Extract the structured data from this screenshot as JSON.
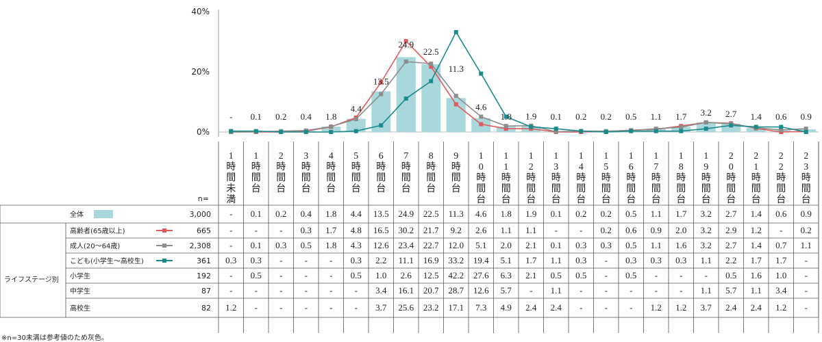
{
  "chart_data": {
    "type": "bar",
    "y_ticks": [
      "40%",
      "20%",
      "0%"
    ],
    "ylim": [
      0,
      40
    ],
    "categories": [
      "1時間未満",
      "1時間台",
      "2時間台",
      "3時間台",
      "4時間台",
      "5時間台",
      "6時間台",
      "7時間台",
      "8時間台",
      "9時間台",
      "10時間台",
      "11時間台",
      "12時間台",
      "13時間台",
      "14時間台",
      "15時間台",
      "16時間台",
      "17時間台",
      "18時間台",
      "19時間台",
      "20時間台",
      "21時間台",
      "22時間台",
      "23時間台"
    ],
    "bar_series": {
      "name": "全体",
      "color": "#a8d8dc",
      "values": [
        0,
        0.1,
        0.2,
        0.4,
        1.8,
        4.4,
        13.5,
        24.9,
        22.5,
        11.3,
        4.6,
        1.8,
        1.9,
        0.1,
        0.2,
        0.2,
        0.5,
        1.1,
        1.7,
        3.2,
        2.7,
        1.4,
        0.6,
        0.9
      ],
      "labels": [
        "-",
        "0.1",
        "0.2",
        "0.4",
        "1.8",
        "4.4",
        "13.5",
        "24.9",
        "22.5",
        "11.3",
        "4.6",
        "1.8",
        "1.9",
        "0.1",
        "0.2",
        "0.2",
        "0.5",
        "1.1",
        "1.7",
        "3.2",
        "2.7",
        "1.4",
        "0.6",
        "0.9"
      ]
    },
    "line_series": [
      {
        "name": "高齢者(65歳以上)",
        "color": "#e05a5a",
        "values": [
          0,
          0,
          0,
          0.3,
          1.7,
          4.8,
          16.5,
          30.2,
          21.7,
          9.2,
          2.6,
          1.1,
          1.1,
          0,
          0,
          0.2,
          0.6,
          0.9,
          2.0,
          3.2,
          2.9,
          1.2,
          0,
          0.2
        ]
      },
      {
        "name": "成人(20〜64歳)",
        "color": "#8c8c8c",
        "values": [
          0,
          0.1,
          0.3,
          0.5,
          1.8,
          4.3,
          12.6,
          23.4,
          22.7,
          12.0,
          5.1,
          2.0,
          2.1,
          0.1,
          0.3,
          0.3,
          0.5,
          1.1,
          1.6,
          3.2,
          2.7,
          1.4,
          0.7,
          1.1
        ]
      },
      {
        "name": "こども(小学生〜高校生)",
        "color": "#1a8a8c",
        "values": [
          0.3,
          0.3,
          0,
          0,
          0,
          0.3,
          2.2,
          11.1,
          16.9,
          33.2,
          19.4,
          5.1,
          1.7,
          1.1,
          0.3,
          0,
          0.3,
          0.3,
          0.3,
          1.1,
          2.2,
          1.7,
          1.7,
          0
        ]
      }
    ]
  },
  "table": {
    "n_label": "n=",
    "group_label": "ライフステージ別",
    "rows": [
      {
        "label": "全体",
        "legend": "bar",
        "color": "#a8d8dc",
        "n": "3,000",
        "cells": [
          "-",
          "0.1",
          "0.2",
          "0.4",
          "1.8",
          "4.4",
          "13.5",
          "24.9",
          "22.5",
          "11.3",
          "4.6",
          "1.8",
          "1.9",
          "0.1",
          "0.2",
          "0.2",
          "0.5",
          "1.1",
          "1.7",
          "3.2",
          "2.7",
          "1.4",
          "0.6",
          "0.9"
        ]
      },
      {
        "label": "高齢者(65歳以上)",
        "legend": "line",
        "color": "#e05a5a",
        "n": "665",
        "cells": [
          "-",
          "-",
          "-",
          "0.3",
          "1.7",
          "4.8",
          "16.5",
          "30.2",
          "21.7",
          "9.2",
          "2.6",
          "1.1",
          "1.1",
          "-",
          "-",
          "0.2",
          "0.6",
          "0.9",
          "2.0",
          "3.2",
          "2.9",
          "1.2",
          "-",
          "0.2"
        ]
      },
      {
        "label": "成人(20〜64歳)",
        "legend": "line",
        "color": "#8c8c8c",
        "n": "2,308",
        "cells": [
          "-",
          "0.1",
          "0.3",
          "0.5",
          "1.8",
          "4.3",
          "12.6",
          "23.4",
          "22.7",
          "12.0",
          "5.1",
          "2.0",
          "2.1",
          "0.1",
          "0.3",
          "0.3",
          "0.5",
          "1.1",
          "1.6",
          "3.2",
          "2.7",
          "1.4",
          "0.7",
          "1.1"
        ]
      },
      {
        "label": "こども(小学生〜高校生)",
        "legend": "line",
        "color": "#1a8a8c",
        "n": "361",
        "cells": [
          "0.3",
          "0.3",
          "-",
          "-",
          "-",
          "0.3",
          "2.2",
          "11.1",
          "16.9",
          "33.2",
          "19.4",
          "5.1",
          "1.7",
          "1.1",
          "0.3",
          "-",
          "0.3",
          "0.3",
          "0.3",
          "1.1",
          "2.2",
          "1.7",
          "1.7",
          "-"
        ]
      },
      {
        "label": "小学生",
        "legend": "none",
        "n": "192",
        "cells": [
          "-",
          "0.5",
          "-",
          "-",
          "-",
          "0.5",
          "1.0",
          "2.6",
          "12.5",
          "42.2",
          "27.6",
          "6.3",
          "2.1",
          "0.5",
          "0.5",
          "-",
          "0.5",
          "-",
          "-",
          "-",
          "0.5",
          "1.6",
          "1.0",
          "-"
        ]
      },
      {
        "label": "中学生",
        "legend": "none",
        "n": "87",
        "cells": [
          "-",
          "-",
          "-",
          "-",
          "-",
          "-",
          "3.4",
          "16.1",
          "20.7",
          "28.7",
          "12.6",
          "5.7",
          "-",
          "1.1",
          "-",
          "-",
          "-",
          "-",
          "-",
          "1.1",
          "5.7",
          "1.1",
          "3.4",
          "-"
        ]
      },
      {
        "label": "高校生",
        "legend": "none",
        "n": "82",
        "cells": [
          "1.2",
          "-",
          "-",
          "-",
          "-",
          "-",
          "3.7",
          "25.6",
          "23.2",
          "17.1",
          "7.3",
          "4.9",
          "2.4",
          "2.4",
          "-",
          "-",
          "-",
          "1.2",
          "1.2",
          "3.7",
          "2.4",
          "2.4",
          "1.2",
          "-"
        ]
      }
    ]
  },
  "note": "※n=30未満は参考値のため灰色。"
}
